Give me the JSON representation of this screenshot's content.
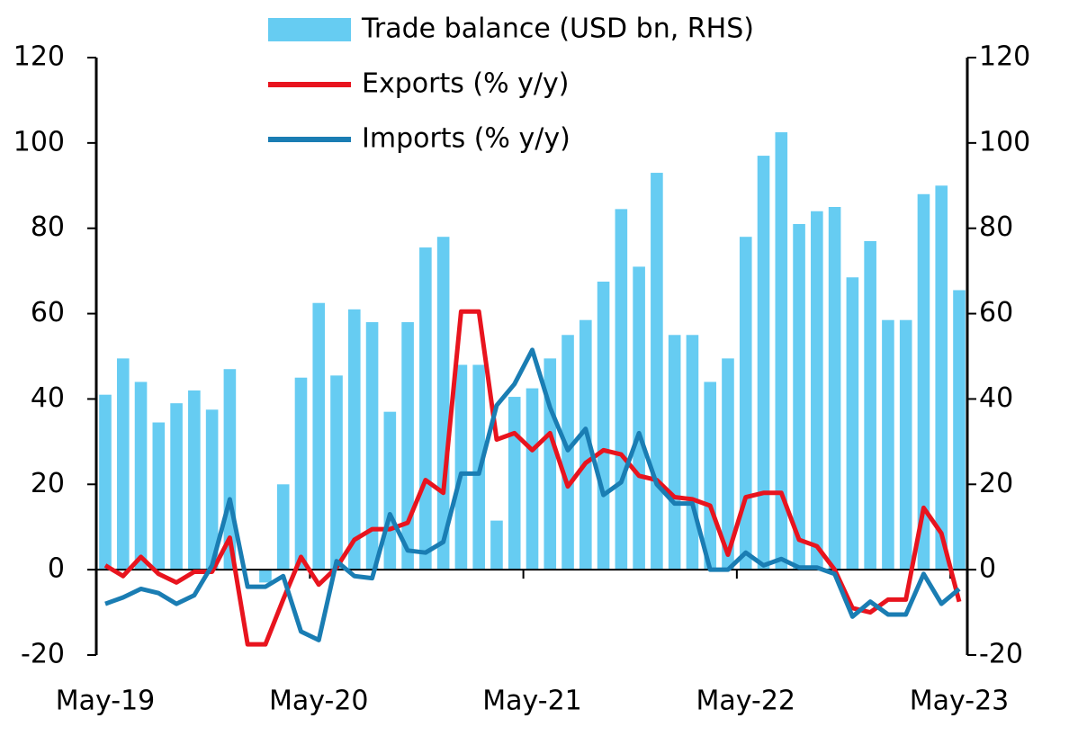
{
  "chart_data": {
    "type": "combo",
    "categories": [
      "May-19",
      null,
      null,
      null,
      null,
      null,
      null,
      null,
      null,
      null,
      null,
      null,
      "May-20",
      null,
      null,
      null,
      null,
      null,
      null,
      null,
      null,
      null,
      null,
      null,
      "May-21",
      null,
      null,
      null,
      null,
      null,
      null,
      null,
      null,
      null,
      null,
      null,
      "May-22",
      null,
      null,
      null,
      null,
      null,
      null,
      null,
      null,
      null,
      null,
      null,
      "May-23"
    ],
    "ylim": [
      -20,
      120
    ],
    "yticks": [
      -20,
      0,
      20,
      40,
      60,
      80,
      100,
      120
    ],
    "y2lim": [
      -20,
      120
    ],
    "y2ticks": [
      -20,
      0,
      20,
      40,
      60,
      80,
      100,
      120
    ],
    "legend": "top",
    "series": [
      {
        "name": "Trade balance (USD bn, RHS)",
        "type": "bar",
        "axis": "y2",
        "color": "#66ccf2",
        "values": [
          41,
          49.5,
          44,
          34.5,
          39,
          42,
          37.5,
          47,
          0,
          -3,
          20,
          45,
          62.5,
          45.5,
          61,
          58,
          37,
          58,
          75.5,
          78,
          48,
          48,
          11.5,
          40.5,
          42.5,
          49.5,
          55,
          58.5,
          67.5,
          84.5,
          71,
          93,
          55,
          55,
          44,
          49.5,
          78,
          97,
          102.5,
          81,
          84,
          85,
          68.5,
          77,
          58.5,
          58.5,
          88,
          90,
          65.5
        ]
      },
      {
        "name": "Exports (% y/y)",
        "type": "line",
        "color": "#e8141e",
        "values": [
          1,
          -1.5,
          3,
          -1,
          -3,
          -0.5,
          -0.5,
          7.5,
          -17.5,
          -17.5,
          -7,
          3,
          -3.5,
          0.5,
          7,
          9.5,
          9.5,
          11,
          21,
          18,
          60.5,
          60.5,
          30.5,
          32,
          28,
          32,
          19.5,
          25,
          28,
          27,
          22,
          21,
          17,
          16.5,
          15,
          3.5,
          17,
          18,
          18,
          7,
          5.5,
          0,
          -9,
          -10,
          -7,
          -7,
          14.5,
          8.5,
          -7.5
        ]
      },
      {
        "name": "Imports (% y/y)",
        "type": "line",
        "color": "#1a7db3",
        "values": [
          -8,
          -6.5,
          -4.5,
          -5.5,
          -8,
          -6,
          1,
          16.5,
          -4,
          -4,
          -1.5,
          -14.5,
          -16.5,
          2,
          -1.5,
          -2,
          13,
          4.5,
          4,
          6.5,
          22.5,
          22.5,
          38.5,
          43.5,
          51.5,
          38,
          28,
          33,
          17.5,
          20.5,
          32,
          20,
          15.5,
          15.5,
          0,
          0,
          4,
          1,
          2.5,
          0.5,
          0.5,
          -1,
          -11,
          -7.5,
          -10.5,
          -10.5,
          -1,
          -8,
          -4.5
        ]
      }
    ]
  }
}
